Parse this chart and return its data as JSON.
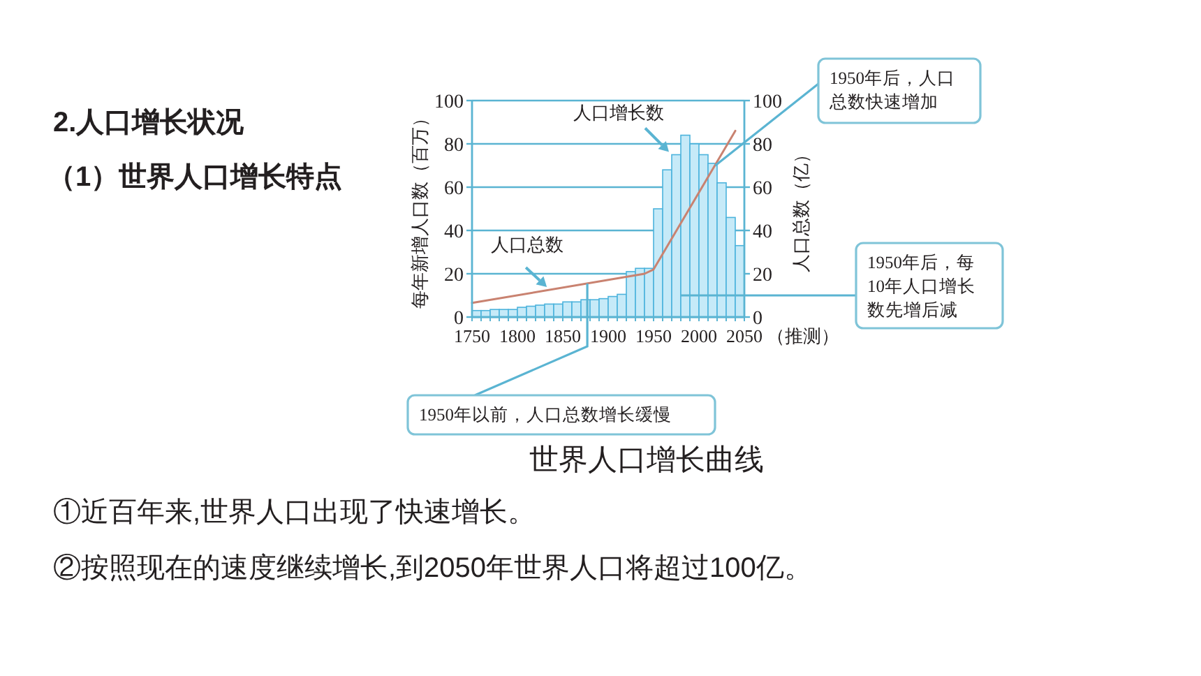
{
  "chart_data": {
    "type": "histogram",
    "title": "2.人口增长状况",
    "subtitle": "（1）世界人口增长特点",
    "xlabel": "（推测）",
    "ylabel": "每年新增人口数（百万）",
    "y2label": "人口总数（亿）",
    "bins": [
      1750,
      1760,
      1770,
      1780,
      1790,
      1800,
      1810,
      1820,
      1830,
      1840,
      1850,
      1860,
      1870,
      1880,
      1890,
      1900,
      1910,
      1920,
      1930,
      1940,
      1950,
      1960,
      1970,
      1980,
      1990,
      2000,
      2010,
      2020,
      2030,
      2040,
      2050
    ],
    "series": [
      {
        "name": "人口增长数",
        "color": "#c6eaf8",
        "values": [
          3,
          3,
          3.5,
          3.5,
          3.5,
          4.5,
          5,
          5.5,
          6,
          6,
          7,
          7,
          8,
          8,
          8.5,
          9.5,
          10.5,
          21,
          22.5,
          22.5,
          50,
          68,
          75,
          84,
          80,
          75,
          71,
          62,
          46,
          33
        ]
      },
      {
        "name": "人口总数",
        "type": "line",
        "axis": "y2",
        "color": "#c98270",
        "x": [
          1750,
          1940,
          1950,
          2040
        ],
        "values": [
          6.5,
          20,
          22,
          86
        ]
      }
    ],
    "xlim": [
      1750,
      2050
    ],
    "xticks": [
      1750,
      {
        "value": 1760,
        "label": null
      },
      {
        "value": 1770,
        "label": null
      },
      {
        "value": 1780,
        "label": null
      },
      {
        "value": 1790,
        "label": null
      },
      1800,
      {
        "value": 1810,
        "label": null
      },
      {
        "value": 1820,
        "label": null
      },
      {
        "value": 1830,
        "label": null
      },
      {
        "value": 1840,
        "label": null
      },
      1850,
      {
        "value": 1860,
        "label": null
      },
      {
        "value": 1870,
        "label": null
      },
      {
        "value": 1880,
        "label": null
      },
      {
        "value": 1890,
        "label": null
      },
      1900,
      {
        "value": 1910,
        "label": null
      },
      {
        "value": 1920,
        "label": null
      },
      {
        "value": 1930,
        "label": null
      },
      {
        "value": 1940,
        "label": null
      },
      1950,
      {
        "value": 1960,
        "label": null
      },
      {
        "value": 1970,
        "label": null
      },
      {
        "value": 1980,
        "label": null
      },
      {
        "value": 1990,
        "label": null
      },
      2000,
      {
        "value": 2010,
        "label": null
      },
      {
        "value": 2020,
        "label": null
      },
      {
        "value": 2030,
        "label": null
      },
      {
        "value": 2040,
        "label": null
      },
      2050
    ],
    "ylim": [
      0,
      100
    ],
    "yticks": [
      0,
      20,
      40,
      60,
      80,
      100
    ],
    "y2lim": [
      0,
      100
    ],
    "y2ticks": [
      0,
      20,
      40,
      60,
      80,
      100
    ],
    "grid": "y",
    "annotations": [
      {
        "text": "1950年后，人口总数快速增加",
        "x": 2018,
        "y": 70
      },
      {
        "text": "1950年后，每10年人口增长数先增后减",
        "x": 1980,
        "y": 10
      },
      {
        "text": "1950年以前，人口总数增长缓慢",
        "x": 1877,
        "y": 15.5
      },
      "世界人口增长曲线",
      "①近百年来,世界人口出现了快速增长。",
      "②按照现在的速度继续增长,到2050年世界人口将超过100亿。"
    ]
  }
}
